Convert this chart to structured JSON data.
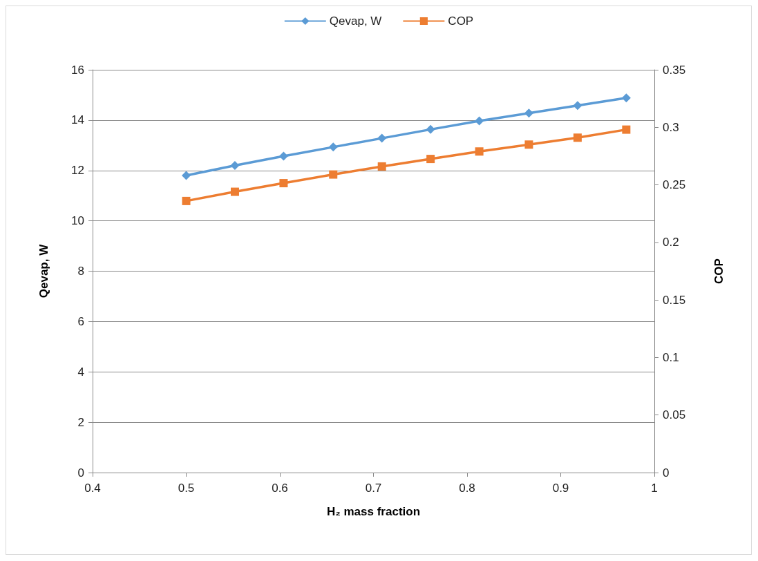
{
  "chart_data": {
    "type": "line",
    "xlabel": "H₂ mass fraction",
    "ylabel": "Qevap, W",
    "y2label": "COP",
    "x": [
      0.5,
      0.552,
      0.604,
      0.657,
      0.709,
      0.761,
      0.813,
      0.866,
      0.918,
      0.97
    ],
    "series": [
      {
        "name": "Qevap, W",
        "color": "#5b9bd5",
        "marker": "diamond",
        "values": [
          11.8,
          12.2,
          12.57,
          12.93,
          13.28,
          13.63,
          13.97,
          14.28,
          14.58,
          14.88
        ]
      },
      {
        "name": "COP",
        "color": "#ed7d31",
        "marker": "square",
        "axis": "y2",
        "values": [
          0.236,
          0.244,
          0.2515,
          0.259,
          0.266,
          0.2725,
          0.279,
          0.285,
          0.291,
          0.298
        ]
      }
    ],
    "xlim": [
      0.4,
      1
    ],
    "xticks": [
      0.4,
      0.5,
      0.6,
      0.7,
      0.8,
      0.9,
      1
    ],
    "ylim": [
      0,
      16
    ],
    "yticks": [
      0,
      2,
      4,
      6,
      8,
      10,
      12,
      14,
      16
    ],
    "y2lim": [
      0,
      0.35
    ],
    "y2ticks": [
      0,
      0.05,
      0.1,
      0.15,
      0.2,
      0.25,
      0.3,
      0.35
    ],
    "grid": "y",
    "legend": "top"
  }
}
